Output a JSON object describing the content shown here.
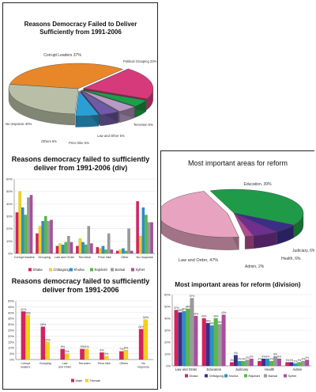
{
  "pie1": {
    "title_line1": "Reasons Democracy Failed to Deliver",
    "title_line2": "Sufficiently from 1991-2006",
    "chart_data": {
      "type": "pie",
      "title": "Reasons Democracy Failed to Deliver Sufficiently from 1991-2006",
      "slices": [
        {
          "label": "Corrupt Leaders 37%",
          "name": "Corrupt Leaders",
          "value": 37,
          "color": "#e8862a"
        },
        {
          "label": "Political Grouping 23%",
          "name": "Political Grouping",
          "value": 23,
          "color": "#d63a7a"
        },
        {
          "label": "Terrorism 5%",
          "name": "Terrorism",
          "value": 5,
          "color": "#1c9e4a"
        },
        {
          "label": "Law and Other 5%",
          "name": "Law and Other",
          "value": 5,
          "color": "#b99ac5"
        },
        {
          "label": "Price hike 5%",
          "name": "Price hike",
          "value": 5,
          "color": "#6f5aa8"
        },
        {
          "label": "Others 6%",
          "name": "Others",
          "value": 6,
          "color": "#2a9fd6"
        },
        {
          "label": "No response 30%",
          "name": "No response",
          "value": 30,
          "color": "#b8bfa6"
        }
      ]
    }
  },
  "bar_div": {
    "title_line1": "Reasons democracy failed to sufficiently",
    "title_line2": "deliver from 1991-2006 (div)",
    "chart_data": {
      "type": "bar",
      "categories": [
        "Corrupt leaders",
        "Grouping",
        "Law and Order",
        "Terrorism",
        "Price hike",
        "Other",
        "No response"
      ],
      "ylim": [
        0,
        60
      ],
      "yticks": [
        "0%",
        "10%",
        "20%",
        "30%",
        "40%",
        "50%",
        "60%"
      ],
      "series": [
        {
          "name": "Dhaka",
          "color": "#d8215e",
          "values": [
            33,
            16,
            6,
            6,
            5,
            2,
            42
          ]
        },
        {
          "name": "Chittagong",
          "color": "#f2d21d",
          "values": [
            50,
            22,
            8,
            12,
            4,
            3,
            14
          ]
        },
        {
          "name": "Khulna",
          "color": "#2c8fc7",
          "values": [
            37,
            26,
            7,
            9,
            6,
            4,
            37
          ]
        },
        {
          "name": "Rajshahi",
          "color": "#57b948",
          "values": [
            31,
            30,
            9,
            7,
            3,
            2,
            31
          ]
        },
        {
          "name": "Barisal",
          "color": "#9a9a9a",
          "values": [
            45,
            26,
            14,
            22,
            16,
            20,
            25
          ]
        },
        {
          "name": "Sylhet",
          "color": "#a84f9e",
          "values": [
            47,
            27,
            9,
            8,
            3,
            2,
            25
          ]
        }
      ],
      "legend": "bottom"
    }
  },
  "bar_gender": {
    "title_line1": "Reasons democracy failed to sufficiently",
    "title_line2": "deliver from 1991-2006",
    "chart_data": {
      "type": "bar",
      "categories": [
        "Corrupt leaders",
        "Grouping",
        "Law and Order",
        "Terrorism",
        "Price hike",
        "Others",
        "No response"
      ],
      "ylim": [
        0,
        50
      ],
      "yticks": [
        "0%",
        "5%",
        "10%",
        "15%",
        "20%",
        "25%",
        "30%",
        "35%",
        "40%",
        "45%",
        "50%"
      ],
      "series": [
        {
          "name": "Male",
          "color": "#d8215e",
          "values": [
            41,
            28,
            9,
            9,
            6,
            7,
            26
          ]
        },
        {
          "name": "Female",
          "color": "#f2d21d",
          "values": [
            38,
            15,
            5,
            9,
            3,
            8,
            34
          ]
        }
      ],
      "labels": [
        [
          "41%",
          "38%"
        ],
        [
          "28%",
          "15%"
        ],
        [
          "9%",
          "5%"
        ],
        [
          "9%",
          "9%"
        ],
        [
          "6%",
          "3%"
        ],
        [
          "7%",
          "8%"
        ],
        [
          "26%",
          "34%"
        ]
      ],
      "legend": "bottom"
    }
  },
  "pie2": {
    "title": "Most important areas for reform",
    "chart_data": {
      "type": "pie",
      "title": "Most important areas for reform",
      "slices": [
        {
          "label": "Education, 39%",
          "name": "Education",
          "value": 39,
          "color": "#1f9a48"
        },
        {
          "label": "Judiciary, 6%",
          "name": "Judiciary",
          "value": 6,
          "color": "#3a2e86"
        },
        {
          "label": "Health, 6%",
          "name": "Health",
          "value": 6,
          "color": "#6f2f8e"
        },
        {
          "label": "Admin, 2%",
          "name": "Admin",
          "value": 2,
          "color": "#b24b8f"
        },
        {
          "label": "Law and Order, 47%",
          "name": "Law and Order",
          "value": 47,
          "color": "#e7a3bf"
        }
      ]
    }
  },
  "bar_reform": {
    "title": "Most important areas for reform (division)",
    "chart_data": {
      "type": "bar",
      "categories": [
        "Law and Order",
        "Education",
        "Judiciary",
        "Health",
        "Admin"
      ],
      "ylim": [
        0,
        60
      ],
      "yticks": [
        "0%",
        "10%",
        "20%",
        "30%",
        "40%",
        "50%",
        "60%"
      ],
      "series": [
        {
          "name": "Dhaka",
          "color": "#d8215e",
          "values": [
            47,
            40,
            3,
            4,
            3
          ]
        },
        {
          "name": "Chittagong",
          "color": "#3a2e86",
          "values": [
            45,
            36,
            9,
            6,
            3
          ]
        },
        {
          "name": "Khulna",
          "color": "#2c8fc7",
          "values": [
            46,
            34,
            4,
            6,
            2
          ]
        },
        {
          "name": "Rajshahi",
          "color": "#57b948",
          "values": [
            48,
            40,
            4,
            4,
            3
          ]
        },
        {
          "name": "Barisal",
          "color": "#9a9a9a",
          "values": [
            57,
            35,
            5,
            8,
            4
          ]
        },
        {
          "name": "Sylhet",
          "color": "#a84f9e",
          "values": [
            42,
            43,
            6,
            6,
            5
          ]
        }
      ],
      "labels": [
        [
          "47%",
          "45%",
          "46%",
          "48%",
          "57%",
          "42%"
        ],
        [
          "40%",
          "36%",
          "34%",
          "40%",
          "35%",
          "43%"
        ],
        [
          "3%",
          "9%",
          "4%",
          "4%",
          "5%",
          "6%"
        ],
        [
          "4%",
          "6%",
          "6%",
          "4%",
          "8%",
          "6%"
        ],
        [
          "3%",
          "3%",
          "2%",
          "3%",
          "4%",
          "5%"
        ]
      ],
      "legend": "bottom"
    }
  }
}
